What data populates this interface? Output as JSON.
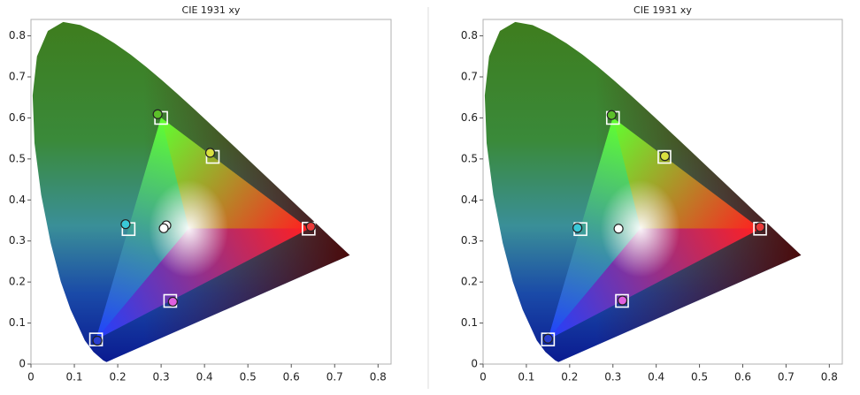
{
  "chart_data": [
    {
      "type": "scatter",
      "title": "CIE 1931 xy",
      "xlim": [
        0,
        0.83
      ],
      "ylim": [
        0,
        0.84
      ],
      "xticks": [
        0,
        0.1,
        0.2,
        0.3,
        0.4,
        0.5,
        0.6,
        0.7,
        0.8
      ],
      "yticks": [
        0,
        0.1,
        0.2,
        0.3,
        0.4,
        0.5,
        0.6,
        0.7,
        0.8
      ],
      "locus": {
        "x": [
          0.1741,
          0.1666,
          0.144,
          0.1241,
          0.0913,
          0.0687,
          0.0454,
          0.0235,
          0.0082,
          0.0039,
          0.0139,
          0.0389,
          0.0743,
          0.1142,
          0.1547,
          0.1929,
          0.2296,
          0.2658,
          0.3016,
          0.3373,
          0.3731,
          0.4087,
          0.4441,
          0.4788,
          0.5125,
          0.5448,
          0.5752,
          0.6029,
          0.627,
          0.6482,
          0.6658,
          0.6915,
          0.7079,
          0.7347
        ],
        "y": [
          0.005,
          0.0089,
          0.0297,
          0.0578,
          0.1327,
          0.2007,
          0.295,
          0.4127,
          0.5384,
          0.6548,
          0.7502,
          0.812,
          0.8338,
          0.8262,
          0.8059,
          0.7816,
          0.7543,
          0.7243,
          0.6923,
          0.6589,
          0.6245,
          0.5896,
          0.5547,
          0.5202,
          0.4866,
          0.4544,
          0.4242,
          0.3965,
          0.3725,
          0.3514,
          0.334,
          0.3083,
          0.292,
          0.2653
        ]
      },
      "series": [
        {
          "marker": "square",
          "color": "#ffffff",
          "x": [
            0.64,
            0.3,
            0.15,
            0.225,
            0.321,
            0.419
          ],
          "y": [
            0.33,
            0.6,
            0.06,
            0.329,
            0.154,
            0.505
          ]
        },
        {
          "marker": "circle",
          "colors": [
            "#e83a3a",
            "#5cbf2a",
            "#2a3fd0",
            "#3ac8d8",
            "#e060e0",
            "#d8e040",
            "#ffffff",
            "#ffffff"
          ],
          "x": [
            0.645,
            0.292,
            0.153,
            0.218,
            0.327,
            0.413,
            0.312,
            0.306
          ],
          "y": [
            0.335,
            0.609,
            0.057,
            0.341,
            0.152,
            0.515,
            0.338,
            0.331
          ]
        }
      ]
    },
    {
      "type": "scatter",
      "title": "CIE 1931 xy",
      "xlim": [
        0,
        0.83
      ],
      "ylim": [
        0,
        0.84
      ],
      "xticks": [
        0,
        0.1,
        0.2,
        0.3,
        0.4,
        0.5,
        0.6,
        0.7,
        0.8
      ],
      "yticks": [
        0,
        0.1,
        0.2,
        0.3,
        0.4,
        0.5,
        0.6,
        0.7,
        0.8
      ],
      "locus": {
        "x": [
          0.1741,
          0.1666,
          0.144,
          0.1241,
          0.0913,
          0.0687,
          0.0454,
          0.0235,
          0.0082,
          0.0039,
          0.0139,
          0.0389,
          0.0743,
          0.1142,
          0.1547,
          0.1929,
          0.2296,
          0.2658,
          0.3016,
          0.3373,
          0.3731,
          0.4087,
          0.4441,
          0.4788,
          0.5125,
          0.5448,
          0.5752,
          0.6029,
          0.627,
          0.6482,
          0.6658,
          0.6915,
          0.7079,
          0.7347
        ],
        "y": [
          0.005,
          0.0089,
          0.0297,
          0.0578,
          0.1327,
          0.2007,
          0.295,
          0.4127,
          0.5384,
          0.6548,
          0.7502,
          0.812,
          0.8338,
          0.8262,
          0.8059,
          0.7816,
          0.7543,
          0.7243,
          0.6923,
          0.6589,
          0.6245,
          0.5896,
          0.5547,
          0.5202,
          0.4866,
          0.4544,
          0.4242,
          0.3965,
          0.3725,
          0.3514,
          0.334,
          0.3083,
          0.292,
          0.2653
        ]
      },
      "series": [
        {
          "marker": "square",
          "color": "#ffffff",
          "x": [
            0.64,
            0.3,
            0.15,
            0.225,
            0.321,
            0.419
          ],
          "y": [
            0.33,
            0.6,
            0.06,
            0.329,
            0.154,
            0.505
          ]
        },
        {
          "marker": "circle",
          "colors": [
            "#e83a3a",
            "#5cbf2a",
            "#2a3fd0",
            "#3ac8d8",
            "#e060e0",
            "#d8e040",
            "#ffffff"
          ],
          "x": [
            0.64,
            0.297,
            0.15,
            0.218,
            0.322,
            0.42,
            0.313
          ],
          "y": [
            0.334,
            0.607,
            0.062,
            0.332,
            0.155,
            0.507,
            0.33
          ]
        }
      ]
    }
  ]
}
